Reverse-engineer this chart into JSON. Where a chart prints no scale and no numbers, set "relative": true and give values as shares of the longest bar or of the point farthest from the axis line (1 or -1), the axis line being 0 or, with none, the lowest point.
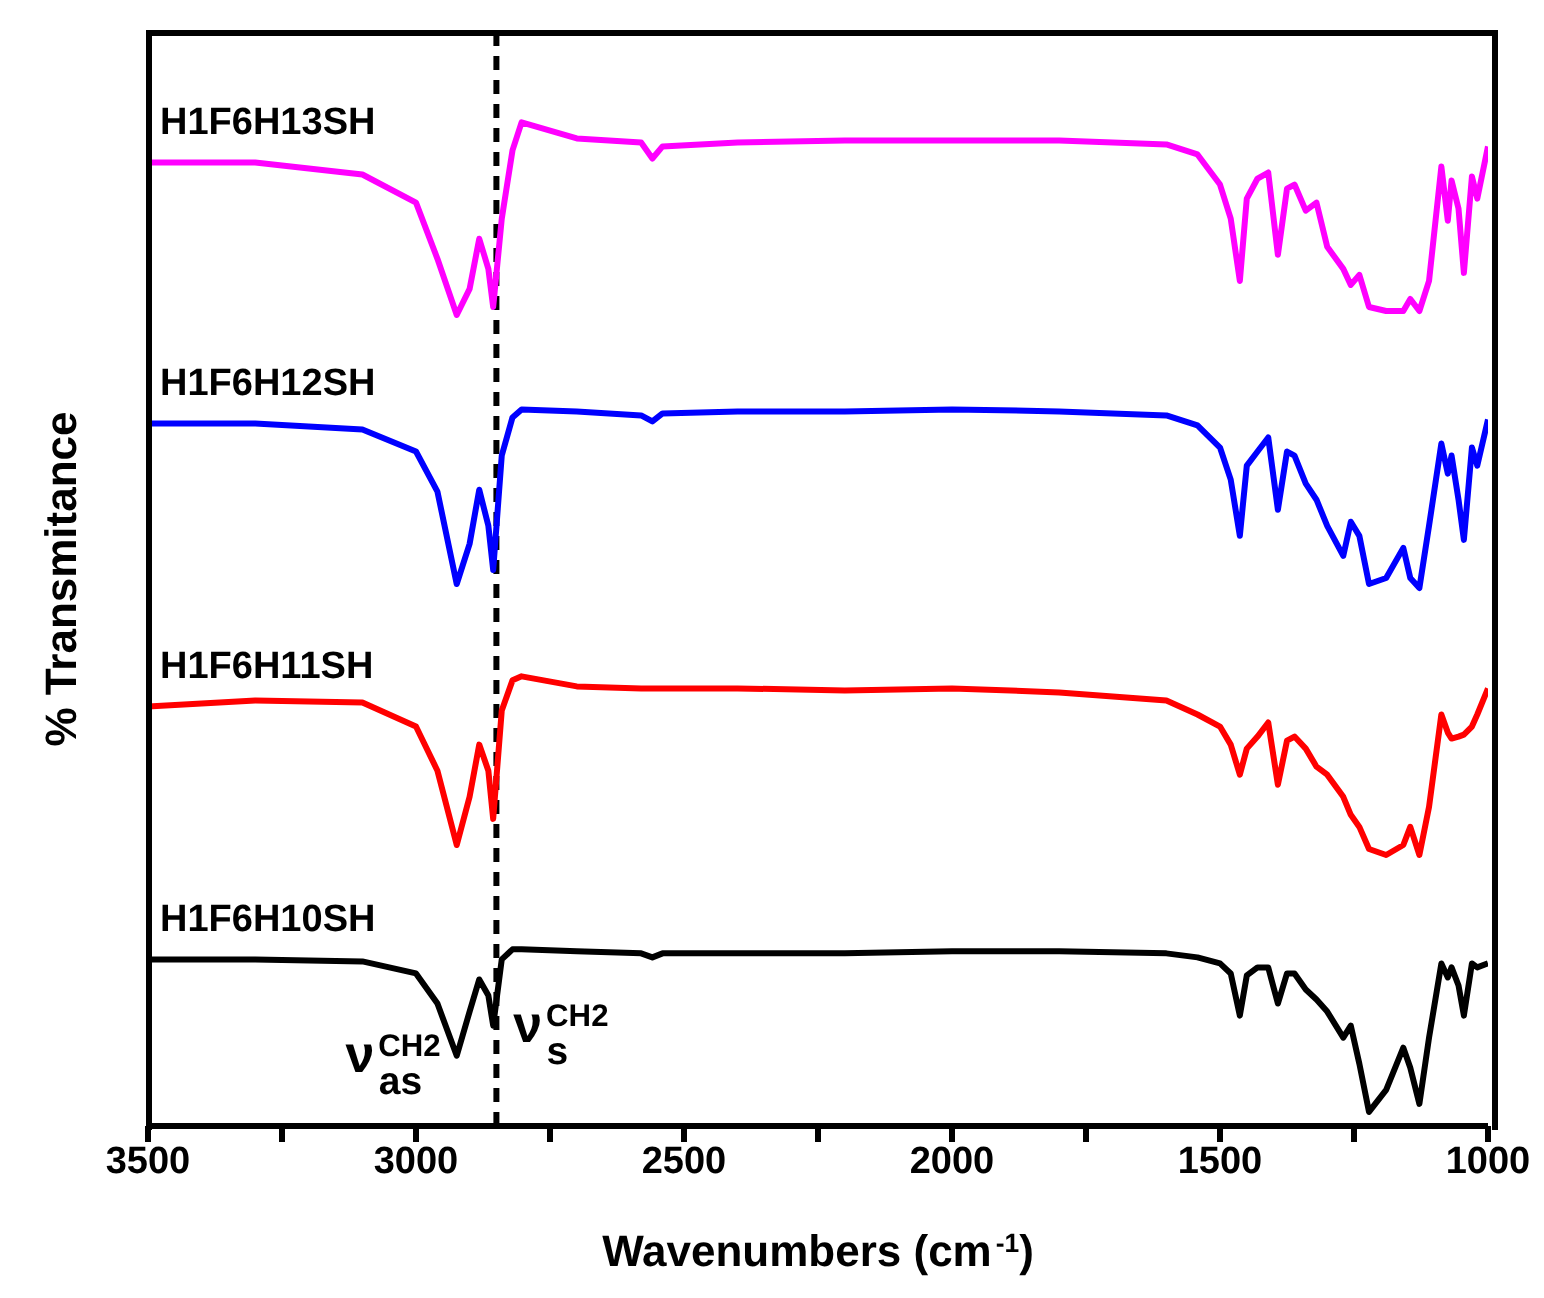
{
  "chart_data": {
    "type": "line",
    "relative": true,
    "xlabel": "Wavenumbers (cm$^{-1}$)",
    "ylabel": "% Transmitance",
    "xlim": [
      3500,
      1000
    ],
    "xticks": [
      3500,
      {
        "value": 3250,
        "label": null
      },
      3000,
      {
        "value": 2750,
        "label": null
      },
      2500,
      {
        "value": 2250,
        "label": null
      },
      2000,
      {
        "value": 1750,
        "label": null
      },
      1500,
      {
        "value": 1250,
        "label": null
      },
      1000
    ],
    "x": [
      3500,
      3300,
      3100,
      3000,
      2960,
      2924,
      2900,
      2882,
      2865,
      2856,
      2840,
      2820,
      2803,
      2700,
      2580,
      2559,
      2540,
      2400,
      2200,
      2000,
      1800,
      1600,
      1542,
      1500,
      1480,
      1463,
      1450,
      1430,
      1410,
      1392,
      1375,
      1361,
      1340,
      1320,
      1300,
      1270,
      1256,
      1240,
      1222,
      1190,
      1158,
      1145,
      1128,
      1110,
      1087,
      1075,
      1068,
      1055,
      1045,
      1030,
      1020,
      1000
    ],
    "series": [
      {
        "name": "H1F6H13SH",
        "color": "#ff00ff",
        "values": [
          0.96,
          0.96,
          0.948,
          0.92,
          0.864,
          0.808,
          0.834,
          0.884,
          0.854,
          0.816,
          0.904,
          0.972,
          1.0,
          0.984,
          0.98,
          0.964,
          0.976,
          0.98,
          0.982,
          0.982,
          0.982,
          0.978,
          0.968,
          0.938,
          0.904,
          0.842,
          0.924,
          0.944,
          0.95,
          0.868,
          0.934,
          0.938,
          0.912,
          0.92,
          0.876,
          0.854,
          0.838,
          0.848,
          0.816,
          0.812,
          0.812,
          0.824,
          0.812,
          0.842,
          0.956,
          0.902,
          0.942,
          0.914,
          0.85,
          0.946,
          0.924,
          0.976
        ]
      },
      {
        "name": "H1F6H12SH",
        "color": "#0000ff",
        "values": [
          0.7,
          0.7,
          0.694,
          0.672,
          0.632,
          0.54,
          0.58,
          0.634,
          0.598,
          0.554,
          0.668,
          0.706,
          0.714,
          0.712,
          0.708,
          0.702,
          0.71,
          0.712,
          0.712,
          0.714,
          0.712,
          0.708,
          0.698,
          0.676,
          0.644,
          0.588,
          0.658,
          0.672,
          0.686,
          0.614,
          0.672,
          0.668,
          0.64,
          0.624,
          0.598,
          0.568,
          0.602,
          0.588,
          0.54,
          0.546,
          0.576,
          0.546,
          0.536,
          0.598,
          0.68,
          0.65,
          0.668,
          0.624,
          0.584,
          0.676,
          0.658,
          0.704
        ]
      },
      {
        "name": "H1F6H11SH",
        "color": "#ff0000",
        "values": [
          0.418,
          0.424,
          0.422,
          0.398,
          0.354,
          0.28,
          0.328,
          0.38,
          0.354,
          0.306,
          0.414,
          0.444,
          0.448,
          0.438,
          0.436,
          0.436,
          0.436,
          0.436,
          0.434,
          0.436,
          0.432,
          0.424,
          0.41,
          0.398,
          0.38,
          0.35,
          0.376,
          0.388,
          0.402,
          0.34,
          0.384,
          0.388,
          0.376,
          0.358,
          0.35,
          0.328,
          0.31,
          0.298,
          0.276,
          0.27,
          0.28,
          0.298,
          0.27,
          0.318,
          0.41,
          0.392,
          0.386,
          0.388,
          0.39,
          0.398,
          0.41,
          0.436
        ]
      },
      {
        "name": "H1F6H10SH",
        "color": "#000000",
        "values": [
          0.166,
          0.166,
          0.164,
          0.152,
          0.122,
          0.07,
          0.114,
          0.146,
          0.13,
          0.1,
          0.166,
          0.176,
          0.176,
          0.174,
          0.172,
          0.168,
          0.172,
          0.172,
          0.172,
          0.174,
          0.174,
          0.172,
          0.168,
          0.162,
          0.152,
          0.11,
          0.15,
          0.158,
          0.158,
          0.122,
          0.152,
          0.152,
          0.136,
          0.126,
          0.114,
          0.088,
          0.1,
          0.062,
          0.014,
          0.036,
          0.078,
          0.058,
          0.022,
          0.088,
          0.162,
          0.148,
          0.158,
          0.14,
          0.11,
          0.162,
          0.158,
          0.162
        ]
      }
    ],
    "ref_lines": [
      {
        "axis": "x",
        "value": 2850,
        "color": "#000000",
        "line_style": "dashed"
      }
    ],
    "annotations": [
      {
        "text": "ν$^{CH2}$$_{as}$",
        "x": 2924,
        "y": 0.07
      },
      {
        "text": "ν$^{CH2}$$_{s}$",
        "x": 2856,
        "y": 0.1
      }
    ],
    "line_style": "solid",
    "marker": "none"
  }
}
